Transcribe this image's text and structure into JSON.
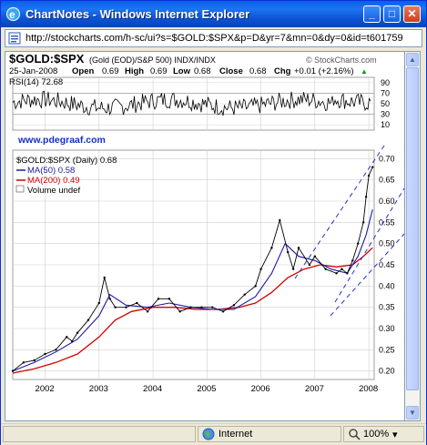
{
  "window": {
    "title": "ChartNotes - Windows Internet Explorer",
    "minimize_glyph": "_",
    "maximize_glyph": "□",
    "close_glyph": "✕"
  },
  "address_bar": {
    "url": "http://stockcharts.com/h-sc/ui?s=$GOLD:$SPX&p=D&yr=7&mn=0&dy=0&id=t601759"
  },
  "chart_header": {
    "symbol": "$GOLD:$SPX",
    "description": "(Gold (EOD)/S&P 500)  INDX/INDX",
    "watermark": "© StockCharts.com",
    "date": "25-Jan-2008",
    "open_label": "Open",
    "open": "0.69",
    "high_label": "High",
    "high": "0.69",
    "low_label": "Low",
    "low": "0.68",
    "close_label": "Close",
    "close": "0.68",
    "chg_label": "Chg",
    "chg": "+0.01 (+2.16%)",
    "chg_arrow": "▲"
  },
  "rsi_panel": {
    "label": "RSI(14) 72.68",
    "ticks": [
      "90",
      "70",
      "50",
      "30",
      "10"
    ],
    "tick_values": [
      90,
      70,
      50,
      30,
      10
    ]
  },
  "website": "www.pdegraaf.com",
  "legend": {
    "price": "$GOLD:$SPX (Daily) 0.68",
    "ma50": "MA(50) 0.58",
    "ma200": "MA(200) 0.49",
    "volume": "Volume undef"
  },
  "colors": {
    "price": "#000000",
    "ma50": "#1a1aa8",
    "ma200": "#d40000",
    "trendline": "#2233cc",
    "website": "#1030c8",
    "rsi_line": "#000000"
  },
  "chart_data": {
    "type": "line",
    "title": "$GOLD:$SPX",
    "xlabel": "",
    "ylabel": "",
    "x_ticks": [
      "2002",
      "2003",
      "2004",
      "2005",
      "2006",
      "2007",
      "2008"
    ],
    "y_ticks": [
      "0.70",
      "0.65",
      "0.60",
      "0.55",
      "0.50",
      "0.45",
      "0.40",
      "0.35",
      "0.30",
      "0.25",
      "0.20"
    ],
    "ylim": [
      0.18,
      0.72
    ],
    "xlim": [
      2001.4,
      2008.1
    ],
    "grid": true,
    "legend_position": "top-left",
    "series": [
      {
        "name": "$GOLD:$SPX (Daily) 0.68",
        "x": [
          2001.4,
          2001.6,
          2001.8,
          2002.0,
          2002.2,
          2002.4,
          2002.5,
          2002.6,
          2002.8,
          2003.0,
          2003.1,
          2003.2,
          2003.3,
          2003.5,
          2003.7,
          2003.9,
          2004.1,
          2004.3,
          2004.5,
          2004.7,
          2004.9,
          2005.1,
          2005.3,
          2005.5,
          2005.7,
          2005.9,
          2006.0,
          2006.2,
          2006.35,
          2006.5,
          2006.6,
          2006.7,
          2006.9,
          2007.0,
          2007.2,
          2007.4,
          2007.5,
          2007.6,
          2007.7,
          2007.8,
          2007.9,
          2007.95,
          2008.0,
          2008.07
        ],
        "values": [
          0.2,
          0.22,
          0.225,
          0.24,
          0.25,
          0.28,
          0.27,
          0.29,
          0.32,
          0.36,
          0.42,
          0.37,
          0.35,
          0.35,
          0.36,
          0.34,
          0.37,
          0.37,
          0.34,
          0.35,
          0.35,
          0.35,
          0.34,
          0.355,
          0.38,
          0.4,
          0.44,
          0.49,
          0.555,
          0.48,
          0.44,
          0.49,
          0.45,
          0.47,
          0.44,
          0.43,
          0.44,
          0.43,
          0.46,
          0.5,
          0.55,
          0.61,
          0.66,
          0.68
        ]
      },
      {
        "name": "MA(50) 0.58",
        "x": [
          2001.4,
          2001.8,
          2002.2,
          2002.6,
          2003.0,
          2003.2,
          2003.5,
          2003.9,
          2004.3,
          2004.7,
          2005.1,
          2005.5,
          2005.9,
          2006.2,
          2006.45,
          2006.7,
          2007.0,
          2007.3,
          2007.6,
          2007.8,
          2007.95,
          2008.07
        ],
        "values": [
          0.2,
          0.22,
          0.245,
          0.275,
          0.33,
          0.38,
          0.355,
          0.35,
          0.36,
          0.35,
          0.345,
          0.345,
          0.375,
          0.43,
          0.5,
          0.47,
          0.46,
          0.44,
          0.43,
          0.47,
          0.52,
          0.58
        ]
      },
      {
        "name": "MA(200) 0.49",
        "x": [
          2001.4,
          2001.8,
          2002.2,
          2002.6,
          2003.0,
          2003.3,
          2003.6,
          2004.0,
          2004.4,
          2004.8,
          2005.2,
          2005.6,
          2005.9,
          2006.2,
          2006.5,
          2006.8,
          2007.1,
          2007.4,
          2007.7,
          2007.9,
          2008.07
        ],
        "values": [
          0.195,
          0.205,
          0.22,
          0.24,
          0.28,
          0.32,
          0.34,
          0.35,
          0.35,
          0.345,
          0.345,
          0.35,
          0.36,
          0.385,
          0.42,
          0.44,
          0.45,
          0.445,
          0.45,
          0.47,
          0.49
        ]
      }
    ]
  }
}
